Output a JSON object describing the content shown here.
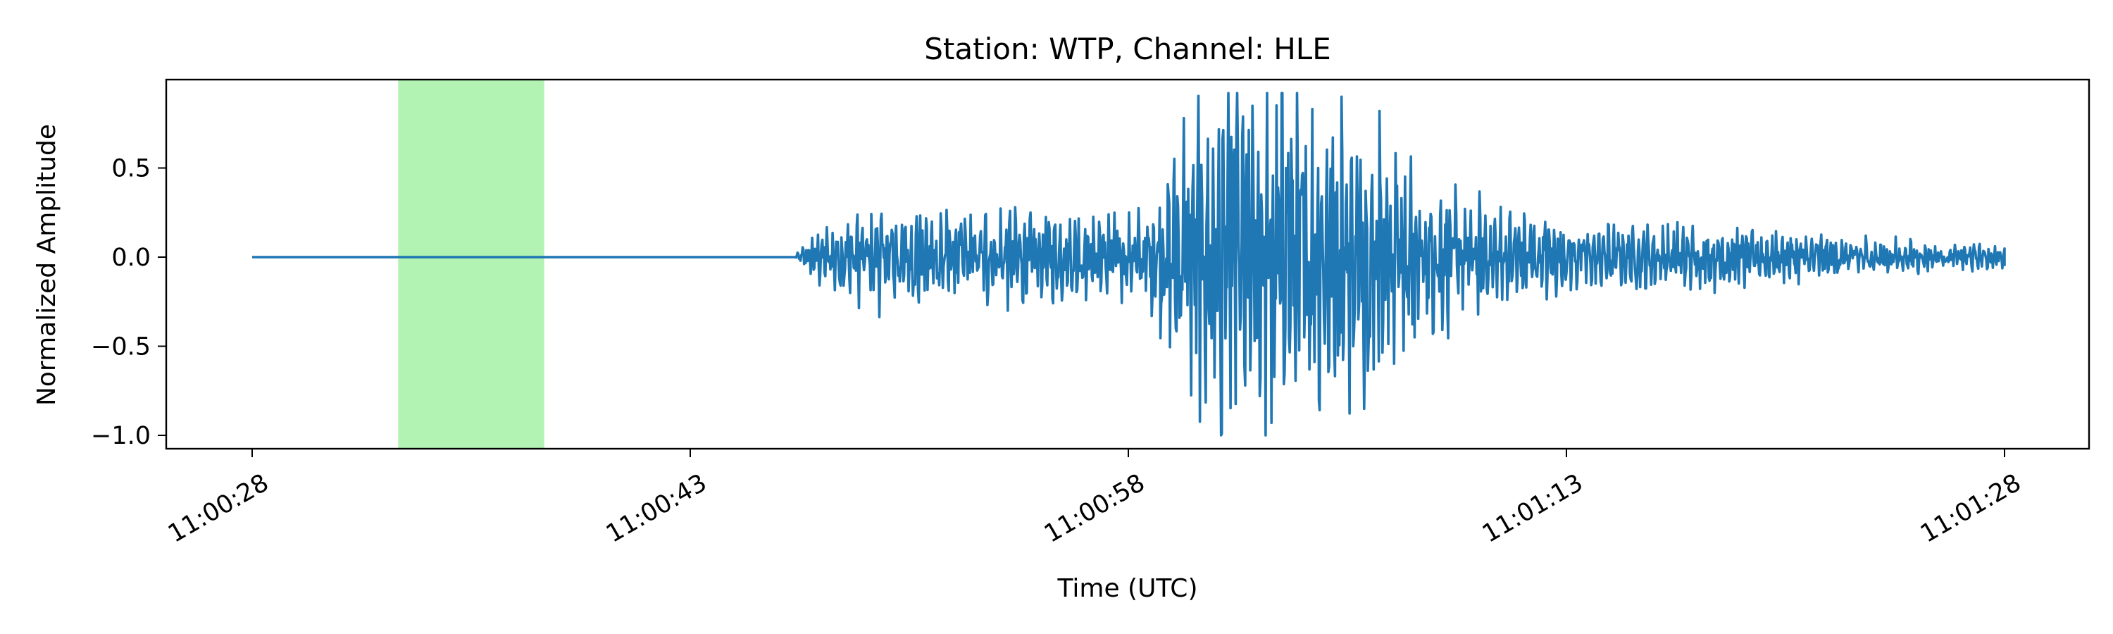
{
  "chart_data": {
    "type": "line",
    "title": "Station: WTP, Channel: HLE",
    "xlabel": "Time (UTC)",
    "ylabel": "Normalized Amplitude",
    "x_range_seconds": [
      0,
      60
    ],
    "x_ticks": [
      {
        "t": 0,
        "label": "11:00:28"
      },
      {
        "t": 15,
        "label": "11:00:43"
      },
      {
        "t": 30,
        "label": "11:00:58"
      },
      {
        "t": 45,
        "label": "11:01:13"
      },
      {
        "t": 60,
        "label": "11:01:28"
      }
    ],
    "y_ticks": [
      {
        "v": 0.5,
        "label": "0.5"
      },
      {
        "v": 0.0,
        "label": "0.0"
      },
      {
        "v": -0.5,
        "label": "−0.5"
      },
      {
        "v": -1.0,
        "label": "−1.0"
      }
    ],
    "ylim": [
      -1.1,
      1.0
    ],
    "highlight_window": {
      "t_start": 5.0,
      "t_end": 10.0,
      "color": "#b2f2b2"
    },
    "series_color": "#1f77b4",
    "onset_t": 18.6,
    "end_t": 60.0,
    "envelope": [
      {
        "t": 18.6,
        "a": 0.02
      },
      {
        "t": 19.5,
        "a": 0.15
      },
      {
        "t": 21.0,
        "a": 0.26
      },
      {
        "t": 24.0,
        "a": 0.25
      },
      {
        "t": 27.0,
        "a": 0.25
      },
      {
        "t": 30.5,
        "a": 0.22
      },
      {
        "t": 31.5,
        "a": 0.55
      },
      {
        "t": 33.0,
        "a": 0.95
      },
      {
        "t": 36.0,
        "a": 0.85
      },
      {
        "t": 38.0,
        "a": 0.7
      },
      {
        "t": 40.0,
        "a": 0.4
      },
      {
        "t": 45.0,
        "a": 0.18
      },
      {
        "t": 50.0,
        "a": 0.16
      },
      {
        "t": 55.0,
        "a": 0.1
      },
      {
        "t": 60.0,
        "a": 0.06
      }
    ],
    "peaks": [
      {
        "t": 31.9,
        "v": 0.78
      },
      {
        "t": 33.2,
        "v": -0.99
      },
      {
        "t": 33.7,
        "v": 0.7
      },
      {
        "t": 34.0,
        "v": -0.72
      },
      {
        "t": 34.9,
        "v": -0.93
      },
      {
        "t": 35.4,
        "v": 0.5
      },
      {
        "t": 36.2,
        "v": -0.63
      },
      {
        "t": 36.5,
        "v": 0.5
      },
      {
        "t": 37.3,
        "v": 0.9
      },
      {
        "t": 37.7,
        "v": -0.5
      },
      {
        "t": 38.4,
        "v": -0.63
      },
      {
        "t": 38.6,
        "v": 0.82
      },
      {
        "t": 39.2,
        "v": 0.4
      },
      {
        "t": 39.8,
        "v": -0.45
      }
    ]
  }
}
